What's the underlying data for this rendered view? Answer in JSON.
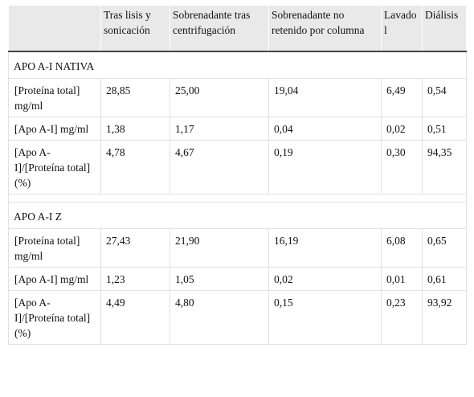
{
  "table": {
    "columns": [
      "Tras lisis y sonicación",
      "Sobrenadante tras centrifugación",
      "Sobrenadante no retenido por columna",
      "Lavado l",
      "Diálisis"
    ],
    "sections": [
      {
        "title": "APO A-I NATIVA",
        "rows": [
          {
            "label": "[Proteína total] mg/ml",
            "values": [
              "28,85",
              "25,00",
              "19,04",
              "6,49",
              "0,54"
            ]
          },
          {
            "label": "[Apo A-I] mg/ml",
            "values": [
              "1,38",
              "1,17",
              "0,04",
              "0,02",
              "0,51"
            ]
          },
          {
            "label": "[Apo A-I]/[Proteína total] (%)",
            "values": [
              "4,78",
              "4,67",
              "0,19",
              "0,30",
              "94,35"
            ]
          }
        ]
      },
      {
        "title": "APO A-I Z",
        "rows": [
          {
            "label": "[Proteína total] mg/ml",
            "values": [
              "27,43",
              "21,90",
              "16,19",
              "6,08",
              "0,65"
            ]
          },
          {
            "label": "[Apo A-I] mg/ml",
            "values": [
              "1,23",
              "1,05",
              "0,02",
              "0,01",
              "0,61"
            ]
          },
          {
            "label": "[Apo A-I]/[Proteína total] (%)",
            "values": [
              "4,49",
              "4,80",
              "0,15",
              "0,23",
              "93,92"
            ]
          }
        ]
      }
    ]
  }
}
